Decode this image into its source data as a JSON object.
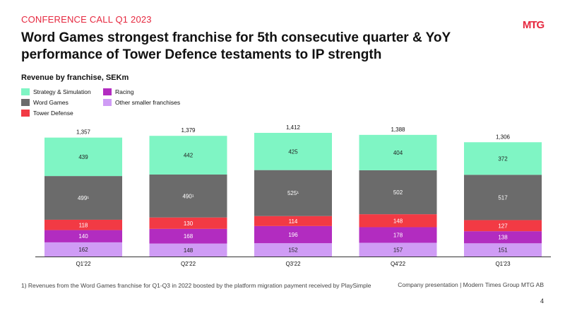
{
  "header": {
    "kicker": "CONFERENCE CALL Q1 2023",
    "logo_text": "MTG",
    "title": "Word Games strongest franchise for 5th consecutive quarter & YoY performance of Tower Defence testaments to IP strength",
    "subtitle": "Revenue by franchise, SEKm"
  },
  "colors": {
    "brand": "#e6283f",
    "strategy": "#7ff5c4",
    "word_games": "#6b6b6b",
    "tower_defense": "#f23a44",
    "racing": "#b22cc0",
    "other": "#cf9cf5"
  },
  "chart_data": {
    "type": "bar",
    "stacked": true,
    "title": "Revenue by franchise, SEKm",
    "categories": [
      "Q1'22",
      "Q2'22",
      "Q3'22",
      "Q4'22",
      "Q1'23"
    ],
    "totals": [
      "1,357",
      "1,379",
      "1,412",
      "1,388",
      "1,306"
    ],
    "series": [
      {
        "name": "Other smaller franchises",
        "color": "#cf9cf5",
        "values": [
          162,
          148,
          152,
          157,
          151
        ],
        "labels": [
          "162",
          "148",
          "152",
          "157",
          "151"
        ],
        "label_color": "#222222"
      },
      {
        "name": "Racing",
        "color": "#b22cc0",
        "values": [
          140,
          168,
          196,
          178,
          138
        ],
        "labels": [
          "140",
          "168",
          "196",
          "178",
          "138"
        ],
        "label_color": "#ffffff"
      },
      {
        "name": "Tower Defense",
        "color": "#f23a44",
        "values": [
          118,
          130,
          114,
          148,
          127
        ],
        "labels": [
          "118",
          "130",
          "114",
          "148",
          "127"
        ],
        "label_color": "#ffffff"
      },
      {
        "name": "Word Games",
        "color": "#6b6b6b",
        "values": [
          499,
          490,
          525,
          502,
          517
        ],
        "labels": [
          "499¹",
          "490¹",
          "525¹",
          "502",
          "517"
        ],
        "label_color": "#ffffff"
      },
      {
        "name": "Strategy & Simulation",
        "color": "#7ff5c4",
        "values": [
          439,
          442,
          425,
          404,
          372
        ],
        "labels": [
          "439",
          "442",
          "425",
          "404",
          "372"
        ],
        "label_color": "#222222"
      }
    ],
    "legend": [
      {
        "name": "Strategy & Simulation",
        "color": "#7ff5c4"
      },
      {
        "name": "Racing",
        "color": "#b22cc0"
      },
      {
        "name": "Word Games",
        "color": "#6b6b6b"
      },
      {
        "name": "Other smaller franchises",
        "color": "#cf9cf5"
      },
      {
        "name": "Tower Defense",
        "color": "#f23a44"
      }
    ],
    "ylim": [
      0,
      1412
    ],
    "grid": false,
    "xlabel": "",
    "ylabel": "SEKm"
  },
  "footer": {
    "footnote": "1) Revenues from the Word Games franchise for Q1-Q3 in 2022 boosted by the platform migration payment  received by PlaySimple",
    "source": "Company presentation | Modern Times Group MTG AB",
    "page_number": "4"
  }
}
